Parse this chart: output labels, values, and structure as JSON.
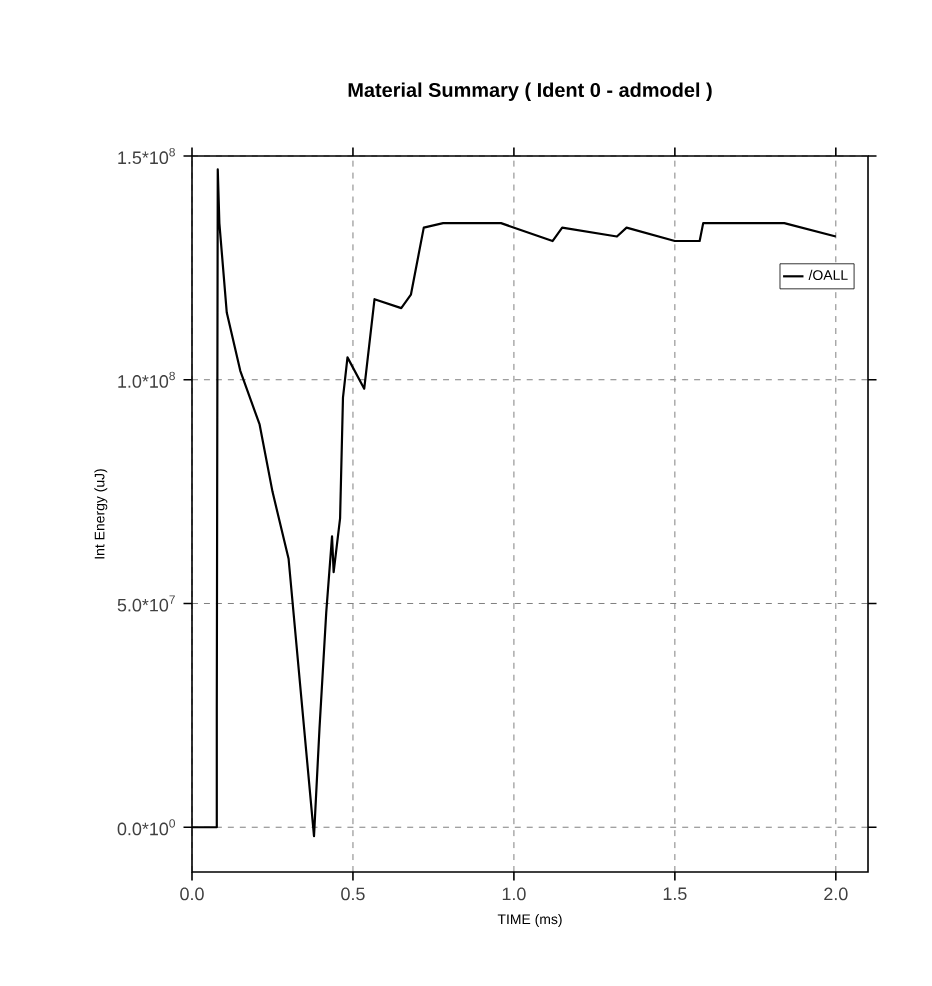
{
  "chart_data": {
    "type": "line",
    "title": "Material Summary ( Ident 0 - admodel )",
    "xlabel": "TIME (ms)",
    "ylabel": "Int Energy (uJ)",
    "xlim": [
      0,
      2.1
    ],
    "ylim": [
      -10000000,
      150000000
    ],
    "xticks": [
      {
        "value": 0,
        "label": "0.0"
      },
      {
        "value": 0.5,
        "label": "0.5"
      },
      {
        "value": 1,
        "label": "1.0"
      },
      {
        "value": 1.5,
        "label": "1.5"
      },
      {
        "value": 2,
        "label": "2.0"
      }
    ],
    "yticks": [
      {
        "value": 0,
        "label": "0.0*10$^{0}$"
      },
      {
        "value": 50000000,
        "label": "5.0*10$^{7}$"
      },
      {
        "value": 100000000,
        "label": "1.0*10$^{8}$"
      },
      {
        "value": 150000000,
        "label": "1.5*10$^{8}$"
      }
    ],
    "grid": true,
    "legend": "top right",
    "marker": "none",
    "line_style": "solid",
    "series": [
      {
        "name": "/OALL",
        "color": "#000000",
        "x": [
          0,
          0.077,
          0.077,
          0.08,
          0.085,
          0.108,
          0.15,
          0.21,
          0.25,
          0.3,
          0.379,
          0.396,
          0.417,
          0.435,
          0.44,
          0.46,
          0.469,
          0.483,
          0.535,
          0.567,
          0.65,
          0.68,
          0.72,
          0.78,
          0.84,
          0.96,
          1.12,
          1.15,
          1.32,
          1.35,
          1.5,
          1.577,
          1.588,
          1.84,
          2.0
        ],
        "values": [
          0,
          0,
          27000000,
          147000000,
          135000000,
          115000000,
          102000000,
          90000000,
          75000000,
          60000000,
          -2000000,
          22000000,
          48000000,
          65000000,
          57000000,
          69000000,
          96000000,
          105000000,
          98000000,
          118000000,
          116000000,
          119000000,
          134000000,
          135000000,
          135000000,
          135000000,
          131000000,
          134000000,
          132000000,
          134000000,
          131000000,
          131000000,
          135000000,
          135000000,
          132000000
        ]
      }
    ]
  }
}
